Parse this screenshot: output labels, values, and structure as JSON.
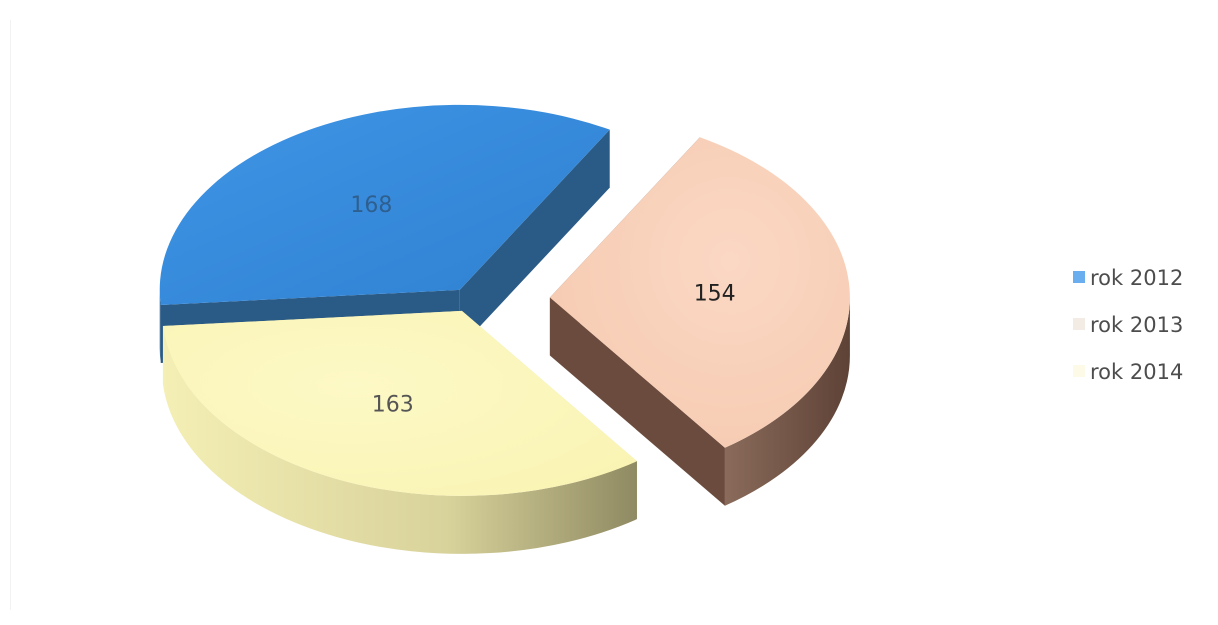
{
  "chart_data": {
    "type": "pie",
    "style": "3d-exploded",
    "title": "",
    "legend_position": "right",
    "series": [
      {
        "values": [
          168,
          154,
          163
        ],
        "labels": [
          "168",
          "154",
          "163"
        ]
      }
    ],
    "categories": [
      "rok 2012",
      "rok 2013",
      "rok 2014"
    ],
    "colors": {
      "rok 2012": "#3a8ede",
      "rok 2013": "#f8cdb3",
      "rok 2014": "#fbf6b8"
    },
    "side_colors": {
      "rok 2012": "#2a5f8c",
      "rok 2013": "#7a5a4a",
      "rok 2014": "#c9c48a"
    },
    "legend_swatch_colors": {
      "rok 2012": "#6aaef0",
      "rok 2013": "#f2ece4",
      "rok 2014": "#fdfbe8"
    }
  }
}
